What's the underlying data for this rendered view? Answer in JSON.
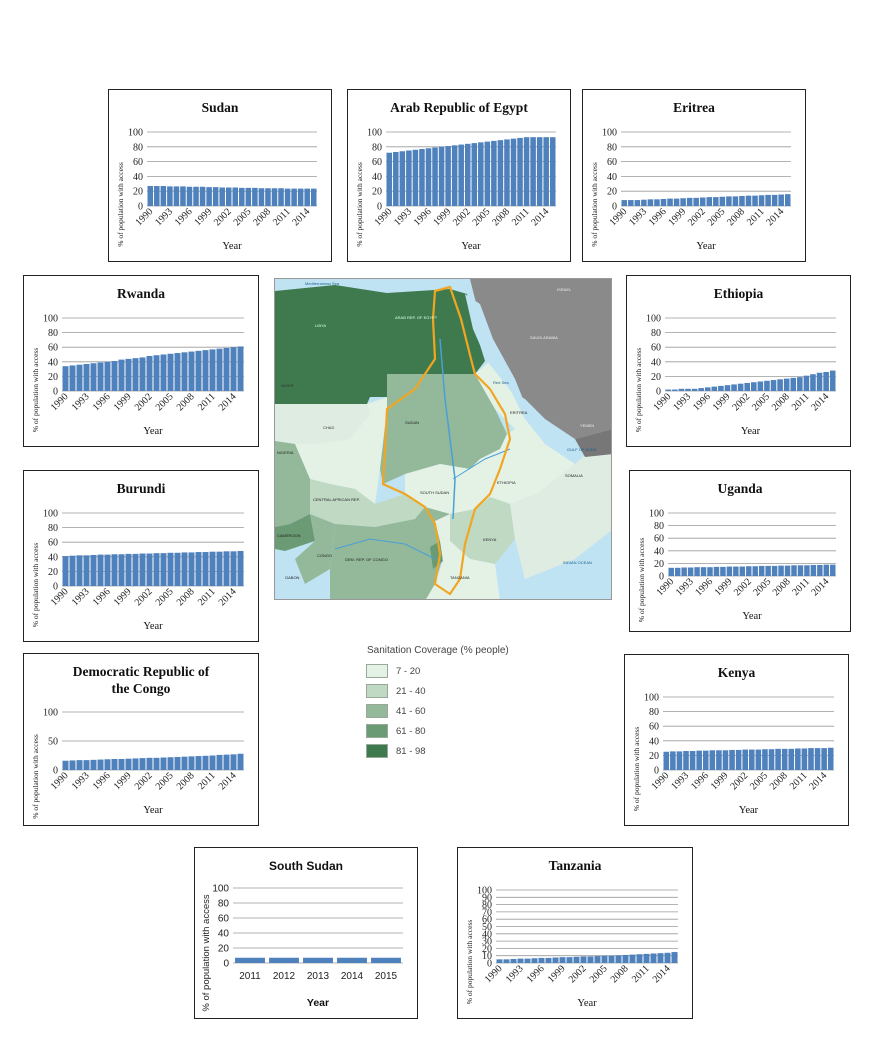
{
  "legend": {
    "title": "Sanitation Coverage (% people)",
    "items": [
      {
        "label": "7 - 20",
        "color": "#e4f2e6"
      },
      {
        "label": "21 - 40",
        "color": "#bfd9c3"
      },
      {
        "label": "41 - 60",
        "color": "#93b99a"
      },
      {
        "label": "61 - 80",
        "color": "#6a9b74"
      },
      {
        "label": "81 - 98",
        "color": "#3f7a4e"
      }
    ]
  },
  "map": {
    "labels": [
      "LIBYA",
      "ARAB REP. OF EGYPT",
      "SAUDI ARABIA",
      "NIGER",
      "CHAD",
      "SUDAN",
      "ERITREA",
      "ETHIOPIA",
      "SOUTH SUDAN",
      "CENTRAL AFRICAN REP.",
      "CAMEROON",
      "NIGERIA",
      "CONGO",
      "DEM. REP. OF CONGO",
      "KENYA",
      "SOMALIA",
      "GABON",
      "TANZANIA",
      "YEMEN",
      "Red Sea",
      "GULF OF ADEN",
      "INDIAN OCEAN",
      "ISRAEL",
      "Mediterranean Sea"
    ]
  },
  "chart_data": [
    {
      "id": "sudan",
      "type": "bar",
      "title": "Sudan",
      "xlabel": "Year",
      "ylabel": "% of population with access",
      "ylim": [
        0,
        100
      ],
      "yticks": [
        0,
        20,
        40,
        60,
        80,
        100
      ],
      "categories": [
        "1990",
        "1991",
        "1992",
        "1993",
        "1994",
        "1995",
        "1996",
        "1997",
        "1998",
        "1999",
        "2000",
        "2001",
        "2002",
        "2003",
        "2004",
        "2005",
        "2006",
        "2007",
        "2008",
        "2009",
        "2010",
        "2011",
        "2012",
        "2013",
        "2014",
        "2015"
      ],
      "tick_labels": [
        "1990",
        "1993",
        "1996",
        "1999",
        "2002",
        "2005",
        "2008",
        "2011",
        "2014"
      ],
      "values": [
        27,
        27,
        27,
        26.5,
        26.5,
        26.5,
        26,
        26,
        26,
        25.5,
        25.5,
        25,
        25,
        25,
        24.5,
        24.5,
        24.5,
        24,
        24,
        24,
        24,
        23.5,
        23.5,
        23.5,
        23.5,
        23.5
      ],
      "color": "#4f81bd"
    },
    {
      "id": "egypt",
      "type": "bar",
      "title": "Arab Republic of  Egypt",
      "xlabel": "Year",
      "ylabel": "% of population with access",
      "ylim": [
        0,
        100
      ],
      "yticks": [
        0,
        20,
        40,
        60,
        80,
        100
      ],
      "categories": [
        "1990",
        "1991",
        "1992",
        "1993",
        "1994",
        "1995",
        "1996",
        "1997",
        "1998",
        "1999",
        "2000",
        "2001",
        "2002",
        "2003",
        "2004",
        "2005",
        "2006",
        "2007",
        "2008",
        "2009",
        "2010",
        "2011",
        "2012",
        "2013",
        "2014",
        "2015"
      ],
      "tick_labels": [
        "1990",
        "1993",
        "1996",
        "1999",
        "2002",
        "2005",
        "2008",
        "2011",
        "2014"
      ],
      "values": [
        72,
        73,
        74,
        75,
        76,
        77,
        78,
        79,
        80,
        81,
        82,
        83,
        84,
        85,
        86,
        87,
        88,
        89,
        90,
        91,
        92,
        93,
        93,
        93,
        93,
        93
      ],
      "color": "#4f81bd"
    },
    {
      "id": "eritrea",
      "type": "bar",
      "title": "Eritrea",
      "xlabel": "Year",
      "ylabel": "% of population with access",
      "ylim": [
        0,
        100
      ],
      "yticks": [
        0,
        20,
        40,
        60,
        80,
        100
      ],
      "categories": [
        "1990",
        "1991",
        "1992",
        "1993",
        "1994",
        "1995",
        "1996",
        "1997",
        "1998",
        "1999",
        "2000",
        "2001",
        "2002",
        "2003",
        "2004",
        "2005",
        "2006",
        "2007",
        "2008",
        "2009",
        "2010",
        "2011",
        "2012",
        "2013",
        "2014",
        "2015"
      ],
      "tick_labels": [
        "1990",
        "1993",
        "1996",
        "1999",
        "2002",
        "2005",
        "2008",
        "2011",
        "2014"
      ],
      "values": [
        8,
        8,
        8,
        8.5,
        9,
        9,
        9.5,
        10,
        10,
        10.5,
        11,
        11,
        11.5,
        12,
        12,
        12.5,
        13,
        13,
        13.5,
        14,
        14,
        14.5,
        15,
        15,
        15.5,
        16
      ],
      "color": "#4f81bd"
    },
    {
      "id": "rwanda",
      "type": "bar",
      "title": "Rwanda",
      "xlabel": "Year",
      "ylabel": "% of population with access",
      "ylim": [
        0,
        100
      ],
      "yticks": [
        0,
        20,
        40,
        60,
        80,
        100
      ],
      "categories": [
        "1990",
        "1991",
        "1992",
        "1993",
        "1994",
        "1995",
        "1996",
        "1997",
        "1998",
        "1999",
        "2000",
        "2001",
        "2002",
        "2003",
        "2004",
        "2005",
        "2006",
        "2007",
        "2008",
        "2009",
        "2010",
        "2011",
        "2012",
        "2013",
        "2014",
        "2015"
      ],
      "tick_labels": [
        "1990",
        "1993",
        "1996",
        "1999",
        "2002",
        "2005",
        "2008",
        "2011",
        "2014"
      ],
      "values": [
        34,
        35,
        36,
        37,
        38,
        39,
        40,
        41,
        43,
        44,
        45,
        46,
        48,
        49,
        50,
        51,
        52,
        53,
        54,
        55,
        56,
        57,
        58,
        59,
        60,
        61
      ],
      "color": "#4f81bd"
    },
    {
      "id": "ethiopia",
      "type": "bar",
      "title": "Ethiopia",
      "xlabel": "Year",
      "ylabel": "% of population with access",
      "ylim": [
        0,
        100
      ],
      "yticks": [
        0,
        20,
        40,
        60,
        80,
        100
      ],
      "categories": [
        "1990",
        "1991",
        "1992",
        "1993",
        "1994",
        "1995",
        "1996",
        "1997",
        "1998",
        "1999",
        "2000",
        "2001",
        "2002",
        "2003",
        "2004",
        "2005",
        "2006",
        "2007",
        "2008",
        "2009",
        "2010",
        "2011",
        "2012",
        "2013",
        "2014",
        "2015"
      ],
      "tick_labels": [
        "1990",
        "1993",
        "1996",
        "1999",
        "2002",
        "2005",
        "2008",
        "2011",
        "2014"
      ],
      "values": [
        2,
        2,
        3,
        3,
        3,
        4,
        5,
        6,
        7,
        8,
        9,
        10,
        11,
        12,
        13,
        14,
        15,
        16,
        17,
        18,
        19,
        21,
        23,
        25,
        26,
        28
      ],
      "color": "#4f81bd"
    },
    {
      "id": "burundi",
      "type": "bar",
      "title": "Burundi",
      "xlabel": "Year",
      "ylabel": "% of population with access",
      "ylim": [
        0,
        100
      ],
      "yticks": [
        0,
        20,
        40,
        60,
        80,
        100
      ],
      "categories": [
        "1990",
        "1991",
        "1992",
        "1993",
        "1994",
        "1995",
        "1996",
        "1997",
        "1998",
        "1999",
        "2000",
        "2001",
        "2002",
        "2003",
        "2004",
        "2005",
        "2006",
        "2007",
        "2008",
        "2009",
        "2010",
        "2011",
        "2012",
        "2013",
        "2014",
        "2015"
      ],
      "tick_labels": [
        "1990",
        "1993",
        "1996",
        "1999",
        "2002",
        "2005",
        "2008",
        "2011",
        "2014"
      ],
      "values": [
        41,
        41.5,
        42,
        42,
        42.5,
        43,
        43,
        43.5,
        43.5,
        44,
        44,
        44.5,
        44.5,
        45,
        45,
        45.5,
        45.5,
        46,
        46,
        46.5,
        46.5,
        47,
        47,
        47.5,
        47.5,
        48
      ],
      "color": "#4f81bd"
    },
    {
      "id": "uganda",
      "type": "bar",
      "title": "Uganda",
      "xlabel": "Year",
      "ylabel": "% of population with access",
      "ylim": [
        0,
        100
      ],
      "yticks": [
        0,
        20,
        40,
        60,
        80,
        100
      ],
      "categories": [
        "1990",
        "1991",
        "1992",
        "1993",
        "1994",
        "1995",
        "1996",
        "1997",
        "1998",
        "1999",
        "2000",
        "2001",
        "2002",
        "2003",
        "2004",
        "2005",
        "2006",
        "2007",
        "2008",
        "2009",
        "2010",
        "2011",
        "2012",
        "2013",
        "2014",
        "2015"
      ],
      "tick_labels": [
        "1990",
        "1993",
        "1996",
        "1999",
        "2002",
        "2005",
        "2008",
        "2011",
        "2014"
      ],
      "values": [
        13,
        13,
        13.5,
        13.5,
        14,
        14,
        14,
        14.5,
        14.5,
        15,
        15,
        15,
        15.5,
        15.5,
        16,
        16,
        16,
        16.5,
        16.5,
        17,
        17,
        17,
        17.5,
        17.5,
        18,
        18
      ],
      "color": "#4f81bd"
    },
    {
      "id": "drc",
      "type": "bar",
      "title": "Democratic Republic of the Congo",
      "title_lines": [
        "Democratic Republic of",
        "the Congo"
      ],
      "xlabel": "Year",
      "ylabel": "% of population with access",
      "ylim": [
        0,
        100
      ],
      "yticks": [
        0,
        50,
        100
      ],
      "categories": [
        "1990",
        "1991",
        "1992",
        "1993",
        "1994",
        "1995",
        "1996",
        "1997",
        "1998",
        "1999",
        "2000",
        "2001",
        "2002",
        "2003",
        "2004",
        "2005",
        "2006",
        "2007",
        "2008",
        "2009",
        "2010",
        "2011",
        "2012",
        "2013",
        "2014",
        "2015"
      ],
      "tick_labels": [
        "1990",
        "1993",
        "1996",
        "1999",
        "2002",
        "2005",
        "2008",
        "2011",
        "2014"
      ],
      "values": [
        16,
        16.5,
        17,
        17,
        17.5,
        18,
        18.5,
        19,
        19,
        19.5,
        20,
        20.5,
        21,
        21,
        21.5,
        22,
        22.5,
        23,
        23.5,
        24,
        24.5,
        25,
        26,
        26.5,
        27,
        28
      ],
      "color": "#4f81bd"
    },
    {
      "id": "kenya",
      "type": "bar",
      "title": "Kenya",
      "xlabel": "Year",
      "ylabel": "% of population with access",
      "ylim": [
        0,
        100
      ],
      "yticks": [
        0,
        20,
        40,
        60,
        80,
        100
      ],
      "categories": [
        "1990",
        "1991",
        "1992",
        "1993",
        "1994",
        "1995",
        "1996",
        "1997",
        "1998",
        "1999",
        "2000",
        "2001",
        "2002",
        "2003",
        "2004",
        "2005",
        "2006",
        "2007",
        "2008",
        "2009",
        "2010",
        "2011",
        "2012",
        "2013",
        "2014",
        "2015"
      ],
      "tick_labels": [
        "1990",
        "1993",
        "1996",
        "1999",
        "2002",
        "2005",
        "2008",
        "2011",
        "2014"
      ],
      "values": [
        25,
        25.5,
        25.5,
        26,
        26,
        26.5,
        26.5,
        27,
        27,
        27,
        27.5,
        27.5,
        28,
        28,
        28,
        28.5,
        28.5,
        29,
        29,
        29,
        29.5,
        29.5,
        30,
        30,
        30,
        30.5
      ],
      "color": "#4f81bd"
    },
    {
      "id": "south_sudan",
      "type": "bar",
      "title": "South Sudan",
      "xlabel": "Year",
      "ylabel": "% of population with access",
      "ylim": [
        0,
        100
      ],
      "yticks": [
        0,
        20,
        40,
        60,
        80,
        100
      ],
      "categories": [
        "2011",
        "2012",
        "2013",
        "2014",
        "2015"
      ],
      "tick_labels": [
        "2011",
        "2012",
        "2013",
        "2014",
        "2015"
      ],
      "values": [
        7,
        7,
        7,
        7,
        7
      ],
      "color": "#4f81bd"
    },
    {
      "id": "tanzania",
      "type": "bar",
      "title": "Tanzania",
      "xlabel": "Year",
      "ylabel": "% of population with access",
      "ylim": [
        0,
        100
      ],
      "yticks": [
        0,
        10,
        20,
        30,
        40,
        50,
        60,
        70,
        80,
        90,
        100
      ],
      "categories": [
        "1990",
        "1991",
        "1992",
        "1993",
        "1994",
        "1995",
        "1996",
        "1997",
        "1998",
        "1999",
        "2000",
        "2001",
        "2002",
        "2003",
        "2004",
        "2005",
        "2006",
        "2007",
        "2008",
        "2009",
        "2010",
        "2011",
        "2012",
        "2013",
        "2014",
        "2015"
      ],
      "tick_labels": [
        "1990",
        "1993",
        "1996",
        "1999",
        "2002",
        "2005",
        "2008",
        "2011",
        "2014"
      ],
      "values": [
        5,
        5,
        5.5,
        6,
        6,
        6.5,
        7,
        7,
        7.5,
        8,
        8,
        8.5,
        9,
        9,
        9.5,
        10,
        10,
        10.5,
        11,
        11.5,
        12,
        12.5,
        13,
        13.5,
        14,
        15
      ],
      "color": "#4f81bd"
    }
  ]
}
